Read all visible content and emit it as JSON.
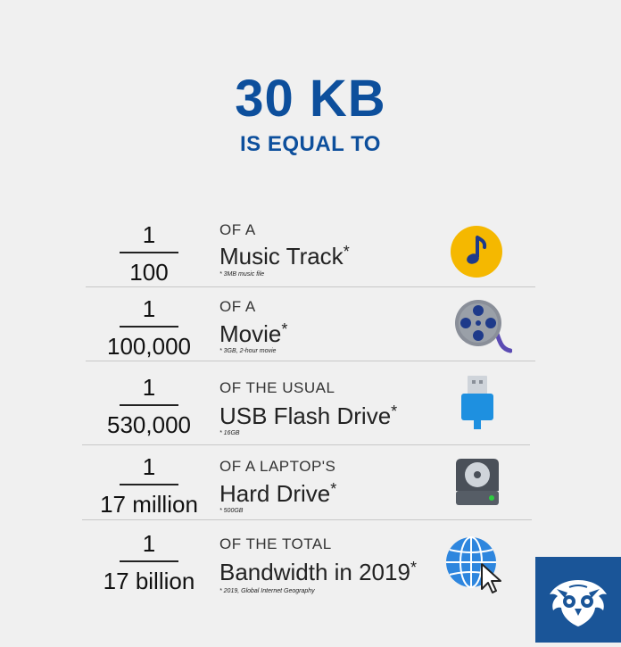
{
  "header": {
    "title": "30 KB",
    "subtitle": "IS EQUAL TO"
  },
  "rows": [
    {
      "numerator": "1",
      "denominator": "100",
      "prefix": "OF A",
      "name": "Music Track",
      "star": "*",
      "note": "* 3MB music file",
      "icon": "music-note-icon"
    },
    {
      "numerator": "1",
      "denominator": "100,000",
      "prefix": "OF A",
      "name": "Movie",
      "star": "*",
      "note": "* 3GB, 2-hour movie",
      "icon": "film-reel-icon"
    },
    {
      "numerator": "1",
      "denominator": "530,000",
      "prefix": "OF THE USUAL",
      "name": "USB Flash Drive",
      "star": "*",
      "note": "* 16GB",
      "icon": "usb-drive-icon"
    },
    {
      "numerator": "1",
      "denominator": "17 million",
      "prefix": "OF A LAPTOP'S",
      "name": "Hard Drive",
      "star": "*",
      "note": "* 500GB",
      "icon": "hard-drive-icon"
    },
    {
      "numerator": "1",
      "denominator": "17 billion",
      "prefix": "OF THE TOTAL",
      "name": "Bandwidth in 2019",
      "star": "*",
      "note": "* 2019, Global Internet Geography",
      "icon": "globe-cursor-icon"
    }
  ],
  "logo": {
    "icon": "owl-logo-icon",
    "color": "#1a5598"
  },
  "colors": {
    "accent": "#0d4f9c",
    "background": "#f0f0f0"
  }
}
